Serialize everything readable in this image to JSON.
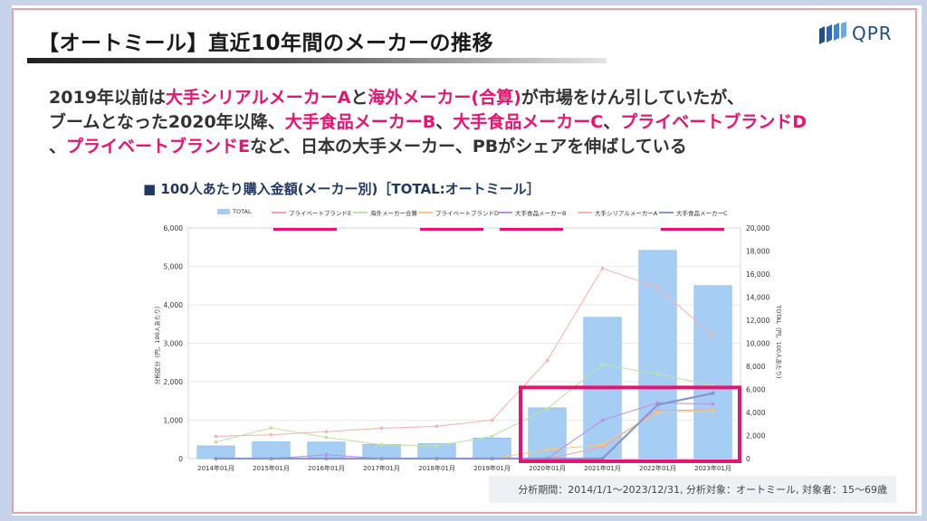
{
  "slide": {
    "title": "【オートミール】直近10年間のメーカーの推移",
    "logo_text": "QPR",
    "lead": [
      {
        "text": "2019年以前は",
        "hl": false
      },
      {
        "text": "大手シリアルメーカーA",
        "hl": true
      },
      {
        "text": "と",
        "hl": false
      },
      {
        "text": "海外メーカー(合算)",
        "hl": true
      },
      {
        "text": "が市場をけん引していたが、",
        "hl": false
      },
      {
        "text": "ブームとなった2020年以降、",
        "hl": false
      },
      {
        "text": "大手食品メーカーB",
        "hl": true
      },
      {
        "text": "、",
        "hl": false
      },
      {
        "text": "大手食品メーカーC",
        "hl": true
      },
      {
        "text": "、",
        "hl": false
      },
      {
        "text": "プライベートブランドD",
        "hl": true
      },
      {
        "text": "、",
        "hl": false
      },
      {
        "text": "プライベートブランドE",
        "hl": true
      },
      {
        "text": "など、日本の大手メーカー、PBがシェアを伸ばしている",
        "hl": false
      }
    ],
    "subtitle": "■ 100人あたり購入金額(メーカー別)［TOTAL:オートミール］",
    "footnote": "分析期間：2014/1/1～2023/12/31, 分析対象：オートミール, 対象者：15～69歳",
    "colors": {
      "highlight": "#e8126f",
      "frame": "#c7d3e6",
      "inner_border": "#e6a1a8",
      "box": "#e8126f"
    }
  },
  "chart_data": {
    "type": "bar+line",
    "categories": [
      "2014年01月",
      "2015年01月",
      "2016年01月",
      "2017年01月",
      "2018年01月",
      "2019年01月",
      "2020年01月",
      "2021年01月",
      "2022年01月",
      "2023年01月"
    ],
    "ylabel_left": "分析区分（円，100人あたり）",
    "ylabel_right": "TOTAL（円，100人あたり）",
    "ylim_left": [
      0,
      6000
    ],
    "ylim_right": [
      0,
      20000
    ],
    "yticks_left": [
      "0",
      "1,000",
      "2,000",
      "3,000",
      "4,000",
      "5,000",
      "6,000"
    ],
    "yticks_right": [
      "0",
      "2,000",
      "4,000",
      "6,000",
      "8,000",
      "10,000",
      "12,000",
      "14,000",
      "16,000",
      "18,000",
      "20,000"
    ],
    "legend_position": "top",
    "bar_series": {
      "name": "TOTAL",
      "axis": "right",
      "color": "#a6cef5",
      "values": [
        1100,
        1450,
        1430,
        1230,
        1300,
        1780,
        4400,
        12250,
        18050,
        15000
      ]
    },
    "line_series": [
      {
        "name": "プライベートブランドE",
        "color": "#f2a0ad",
        "values": [
          0,
          0,
          0,
          0,
          0,
          0,
          0,
          300,
          1250,
          1270
        ],
        "underline": true
      },
      {
        "name": "海外メーカー合算",
        "color": "#bfe3a4",
        "values": [
          430,
          800,
          550,
          360,
          330,
          580,
          1300,
          2450,
          2200,
          1900
        ],
        "underline": false
      },
      {
        "name": "プライベートブランドD",
        "color": "#f7c97c",
        "values": [
          0,
          0,
          0,
          0,
          0,
          0,
          230,
          360,
          1200,
          1250
        ],
        "underline": true
      },
      {
        "name": "大手食品メーカーB",
        "color": "#c08ce6",
        "values": [
          0,
          0,
          100,
          0,
          0,
          0,
          0,
          1000,
          1450,
          1420
        ],
        "underline": true
      },
      {
        "name": "大手シリアルメーカーA",
        "color": "#f5b8b0",
        "values": [
          580,
          620,
          700,
          790,
          840,
          1000,
          2550,
          4950,
          4450,
          3200
        ],
        "underline": false
      },
      {
        "name": "大手食品メーカーC",
        "color": "#8a94cf",
        "values": [
          0,
          0,
          0,
          0,
          0,
          0,
          0,
          0,
          1400,
          1700
        ],
        "underline": true,
        "bold": true
      }
    ],
    "annotation_box": {
      "from_category": "2020年01月",
      "to_category": "2023年01月",
      "y_min": 0,
      "y_max": 1850
    }
  }
}
